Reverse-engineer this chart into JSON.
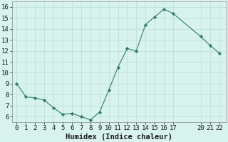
{
  "x": [
    0,
    1,
    2,
    3,
    4,
    5,
    6,
    7,
    8,
    9,
    10,
    11,
    12,
    13,
    14,
    15,
    16,
    17,
    20,
    21,
    22
  ],
  "y": [
    9.0,
    7.8,
    7.7,
    7.5,
    6.8,
    6.2,
    6.3,
    6.0,
    5.7,
    6.4,
    8.4,
    10.5,
    12.2,
    12.0,
    14.4,
    15.1,
    15.8,
    15.4,
    13.3,
    12.5,
    11.8
  ],
  "xlabel": "Humidex (Indice chaleur)",
  "ylim": [
    5.5,
    16.5
  ],
  "xlim": [
    -0.5,
    22.8
  ],
  "yticks": [
    6,
    7,
    8,
    9,
    10,
    11,
    12,
    13,
    14,
    15,
    16
  ],
  "xticks": [
    0,
    1,
    2,
    3,
    4,
    5,
    6,
    7,
    8,
    9,
    10,
    11,
    12,
    13,
    14,
    15,
    16,
    17,
    20,
    21,
    22
  ],
  "line_color": "#2e7d6e",
  "marker_color": "#2e7d6e",
  "bg_color": "#d8f2ee",
  "grid_color": "#b8ddd8",
  "xlabel_fontsize": 7.5,
  "tick_fontsize": 6.5
}
